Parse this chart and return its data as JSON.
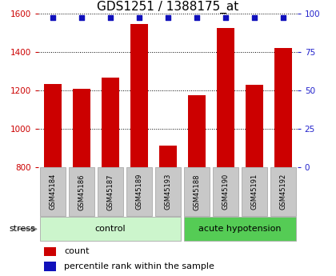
{
  "title": "GDS1251 / 1388175_at",
  "samples": [
    "GSM45184",
    "GSM45186",
    "GSM45187",
    "GSM45189",
    "GSM45193",
    "GSM45188",
    "GSM45190",
    "GSM45191",
    "GSM45192"
  ],
  "counts": [
    1235,
    1210,
    1265,
    1545,
    910,
    1175,
    1525,
    1230,
    1420
  ],
  "percentiles": [
    98,
    98,
    98,
    98,
    98,
    98,
    98,
    98,
    98
  ],
  "control_count": 5,
  "bar_color": "#cc0000",
  "dot_color": "#1111bb",
  "ylim_left": [
    800,
    1600
  ],
  "ylim_right": [
    0,
    100
  ],
  "yticks_left": [
    800,
    1000,
    1200,
    1400,
    1600
  ],
  "yticks_right": [
    0,
    25,
    50,
    75,
    100
  ],
  "left_tick_color": "#cc0000",
  "right_tick_color": "#2222cc",
  "title_fontsize": 11,
  "xticklabel_bg": "#c8c8c8",
  "xticklabel_edge": "#aaaaaa",
  "control_color": "#ccf5cc",
  "acute_color": "#55cc55",
  "legend_count_color": "#cc0000",
  "legend_pct_color": "#1111bb",
  "stress_label": "stress",
  "bar_width": 0.6,
  "dot_size": 25
}
